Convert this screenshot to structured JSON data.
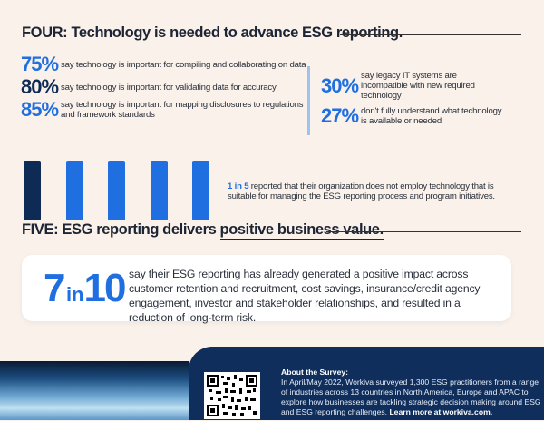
{
  "section_four": {
    "label": "FOUR:",
    "title": "Technology is needed to advance ESG reporting.",
    "left_stats": [
      {
        "value": "75%",
        "text": "say technology is important for compiling and collaborating on data",
        "color": "#1f6fe0"
      },
      {
        "value": "80%",
        "text": "say technology is important for validating data for accuracy",
        "color": "#0d2b55"
      },
      {
        "value": "85%",
        "text": "say technology is important for mapping disclosures to regulations and framework standards",
        "color": "#1f6fe0"
      }
    ],
    "right_stats": [
      {
        "value": "30%",
        "text": "say legacy IT systems are incompatible with new required technology"
      },
      {
        "value": "27%",
        "text": "don't fully understand what technology is available or needed"
      }
    ],
    "ratio": {
      "highlight": "1 in 5",
      "text": " reported that their organization does not employ technology that is suitable for managing the ESG reporting process and program initiatives.",
      "filled": 1,
      "total": 5
    }
  },
  "section_five": {
    "label": "FIVE:",
    "title_plain": "ESG reporting delivers ",
    "title_underlined": "positive business value.",
    "stat": {
      "num": "7",
      "in": "in",
      "den": "10",
      "text": "say their ESG reporting has already generated a positive impact across customer retention and recruitment, cost savings, insurance/credit agency engagement, investor and stakeholder relationships, and resulted in a reduction of long-term risk."
    }
  },
  "about": {
    "title": "About the Survey:",
    "text": "In April/May 2022, Workiva surveyed 1,300 ESG practitioners from a range of industries across 13 countries in North America, Europe and APAC to explore how businesses are tackling strategic decision making around ESG and ESG reporting challenges. ",
    "link": "Learn more at workiva.com."
  },
  "colors": {
    "accent": "#1f6fe0",
    "navy": "#0d2b55",
    "panel": "#0f2e5c",
    "background": "#f9f1ea"
  }
}
